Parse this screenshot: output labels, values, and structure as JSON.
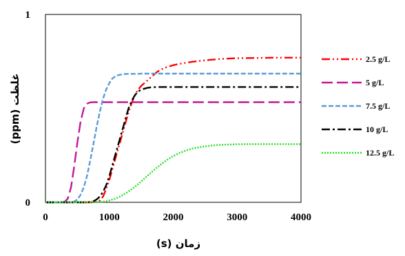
{
  "chart_data": {
    "type": "line",
    "title": "",
    "xlabel": "زمان (s)",
    "ylabel": "غلظت (ppm)",
    "xlim": [
      0,
      4000
    ],
    "ylim": [
      0,
      1
    ],
    "xticks": [
      "0",
      "1000",
      "2000",
      "3000",
      "4000"
    ],
    "yticks": [
      "0",
      "1"
    ],
    "grid": false,
    "legend_position": "right",
    "x": [
      0,
      200,
      300,
      350,
      400,
      450,
      500,
      550,
      600,
      650,
      700,
      750,
      800,
      850,
      900,
      950,
      1000,
      1050,
      1100,
      1150,
      1200,
      1250,
      1300,
      1350,
      1400,
      1450,
      1500,
      1550,
      1600,
      1650,
      1700,
      1750,
      1800,
      1850,
      1900,
      1950,
      2000,
      2100,
      2200,
      2300,
      2400,
      2500,
      2600,
      2700,
      2800,
      2900,
      3000,
      3200,
      3400,
      3600,
      3800,
      4000
    ],
    "series": [
      {
        "name": "2.5 g/L",
        "color": "#ff0000",
        "dash": "dashdotdot",
        "values": [
          0,
          0,
          0,
          0,
          0,
          0,
          0,
          0,
          0,
          0,
          0,
          0.001,
          0.003,
          0.01,
          0.03,
          0.07,
          0.12,
          0.18,
          0.24,
          0.3,
          0.36,
          0.42,
          0.48,
          0.53,
          0.57,
          0.6,
          0.62,
          0.635,
          0.65,
          0.665,
          0.68,
          0.695,
          0.705,
          0.713,
          0.72,
          0.725,
          0.73,
          0.737,
          0.743,
          0.748,
          0.752,
          0.756,
          0.759,
          0.762,
          0.764,
          0.766,
          0.767,
          0.768,
          0.769,
          0.77,
          0.77,
          0.77
        ]
      },
      {
        "name": "5 g/L",
        "color": "#c0179a",
        "dash": "longdash",
        "values": [
          0,
          0,
          0.002,
          0.02,
          0.08,
          0.19,
          0.32,
          0.43,
          0.5,
          0.525,
          0.532,
          0.533,
          0.533,
          0.533,
          0.533,
          0.533,
          0.533,
          0.533,
          0.533,
          0.533,
          0.533,
          0.533,
          0.533,
          0.533,
          0.533,
          0.533,
          0.533,
          0.533,
          0.533,
          0.533,
          0.533,
          0.533,
          0.533,
          0.533,
          0.533,
          0.533,
          0.533,
          0.533,
          0.533,
          0.533,
          0.533,
          0.533,
          0.533,
          0.533,
          0.533,
          0.533,
          0.533,
          0.533,
          0.533,
          0.533,
          0.533,
          0.533
        ]
      },
      {
        "name": "7.5 g/L",
        "color": "#5b9bd5",
        "dash": "dash",
        "values": [
          0,
          0,
          0,
          0,
          0,
          0.004,
          0.015,
          0.04,
          0.08,
          0.14,
          0.22,
          0.31,
          0.4,
          0.48,
          0.55,
          0.6,
          0.635,
          0.66,
          0.672,
          0.678,
          0.681,
          0.683,
          0.684,
          0.684,
          0.684,
          0.684,
          0.685,
          0.685,
          0.685,
          0.685,
          0.685,
          0.685,
          0.685,
          0.685,
          0.685,
          0.685,
          0.685,
          0.685,
          0.685,
          0.685,
          0.685,
          0.685,
          0.685,
          0.685,
          0.685,
          0.685,
          0.685,
          0.685,
          0.685,
          0.685,
          0.685,
          0.685
        ]
      },
      {
        "name": "10 g/L",
        "color": "#000000",
        "dash": "dashdot",
        "values": [
          0,
          0,
          0,
          0,
          0,
          0,
          0,
          0,
          0,
          0,
          0.002,
          0.006,
          0.015,
          0.03,
          0.055,
          0.09,
          0.14,
          0.2,
          0.26,
          0.32,
          0.38,
          0.44,
          0.5,
          0.54,
          0.57,
          0.59,
          0.6,
          0.605,
          0.61,
          0.612,
          0.613,
          0.614,
          0.614,
          0.614,
          0.614,
          0.614,
          0.614,
          0.614,
          0.614,
          0.614,
          0.614,
          0.614,
          0.614,
          0.614,
          0.614,
          0.614,
          0.614,
          0.614,
          0.614,
          0.614,
          0.614,
          0.614
        ]
      },
      {
        "name": "12.5 g/L",
        "color": "#22dd22",
        "dash": "dot",
        "values": [
          0,
          0,
          0,
          0,
          0,
          0,
          0,
          0,
          0,
          0,
          0,
          0,
          0.001,
          0.002,
          0.004,
          0.006,
          0.01,
          0.015,
          0.02,
          0.028,
          0.037,
          0.047,
          0.058,
          0.07,
          0.083,
          0.097,
          0.112,
          0.127,
          0.142,
          0.157,
          0.172,
          0.186,
          0.2,
          0.213,
          0.225,
          0.236,
          0.246,
          0.263,
          0.276,
          0.286,
          0.293,
          0.298,
          0.302,
          0.305,
          0.307,
          0.308,
          0.309,
          0.31,
          0.31,
          0.31,
          0.31,
          0.31
        ]
      }
    ]
  }
}
